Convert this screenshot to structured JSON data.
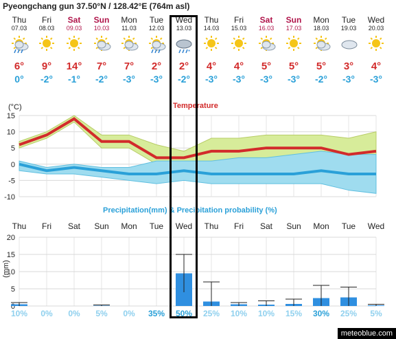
{
  "header": {
    "title": "Pyeongchang gun  37.50°N / 128.42°E (764m asl)"
  },
  "days": [
    {
      "day": "Thu",
      "date": "07.03",
      "weekend": false,
      "icon": "sun-cloud-rain-icon",
      "tmax": "6°",
      "tmin": "0°"
    },
    {
      "day": "Fri",
      "date": "08.03",
      "weekend": false,
      "icon": "sun-icon",
      "tmax": "9°",
      "tmin": "-2°"
    },
    {
      "day": "Sat",
      "date": "09.03",
      "weekend": true,
      "icon": "sun-icon",
      "tmax": "14°",
      "tmin": "-1°"
    },
    {
      "day": "Sun",
      "date": "10.03",
      "weekend": true,
      "icon": "sun-cloud-icon",
      "tmax": "7°",
      "tmin": "-2°"
    },
    {
      "day": "Mon",
      "date": "11.03",
      "weekend": false,
      "icon": "sun-cloud-icon",
      "tmax": "7°",
      "tmin": "-3°"
    },
    {
      "day": "Tue",
      "date": "12.03",
      "weekend": false,
      "icon": "sun-cloud-rain-icon",
      "tmax": "2°",
      "tmin": "-3°"
    },
    {
      "day": "Wed",
      "date": "13.03",
      "weekend": false,
      "icon": "cloud-rain-snow-icon",
      "tmax": "2°",
      "tmin": "-2°"
    },
    {
      "day": "Thu",
      "date": "14.03",
      "weekend": false,
      "icon": "sun-icon",
      "tmax": "4°",
      "tmin": "-3°"
    },
    {
      "day": "Fri",
      "date": "15.03",
      "weekend": false,
      "icon": "sun-icon",
      "tmax": "4°",
      "tmin": "-3°"
    },
    {
      "day": "Sat",
      "date": "16.03",
      "weekend": true,
      "icon": "sun-cloud-icon",
      "tmax": "5°",
      "tmin": "-3°"
    },
    {
      "day": "Sun",
      "date": "17.03",
      "weekend": true,
      "icon": "sun-icon",
      "tmax": "5°",
      "tmin": "-3°"
    },
    {
      "day": "Mon",
      "date": "18.03",
      "weekend": false,
      "icon": "sun-cloud-icon",
      "tmax": "5°",
      "tmin": "-2°"
    },
    {
      "day": "Tue",
      "date": "19.03",
      "weekend": false,
      "icon": "cloud-icon",
      "tmax": "3°",
      "tmin": "-3°"
    },
    {
      "day": "Wed",
      "date": "20.03",
      "weekend": false,
      "icon": "sun-icon",
      "tmax": "4°",
      "tmin": "-3°"
    }
  ],
  "colors": {
    "tmax": "#d22b2b",
    "tmin": "#2aa0d8",
    "weekend": "#b0144a",
    "maxband": "#d7ec9a",
    "minband": "#9fdcef",
    "bar": "#2f8fe0"
  },
  "chart_data": [
    {
      "type": "line",
      "title": "Temperature",
      "ylabel": "(°C)",
      "ylim": [
        -10,
        15
      ],
      "yticks": [
        "15",
        "10",
        "5",
        "0",
        "-5",
        "-10"
      ],
      "categories": [
        "Thu",
        "Fri",
        "Sat",
        "Sun",
        "Mon",
        "Tue",
        "Wed",
        "Thu",
        "Fri",
        "Sat",
        "Sun",
        "Mon",
        "Tue",
        "Wed"
      ],
      "series": [
        {
          "name": "max",
          "values": [
            6,
            9,
            14,
            7,
            7,
            2,
            2,
            4,
            4,
            5,
            5,
            5,
            3,
            4
          ]
        },
        {
          "name": "min",
          "values": [
            0,
            -2,
            -1,
            -2,
            -3,
            -3,
            -2,
            -3,
            -3,
            -3,
            -3,
            -2,
            -3,
            -3
          ]
        }
      ],
      "max_band": [
        [
          5,
          7
        ],
        [
          8,
          10
        ],
        [
          13,
          15
        ],
        [
          5,
          9
        ],
        [
          5,
          9
        ],
        [
          0,
          6
        ],
        [
          0,
          4
        ],
        [
          1,
          8
        ],
        [
          1,
          8
        ],
        [
          1,
          9
        ],
        [
          1,
          9
        ],
        [
          1,
          9
        ],
        [
          -1,
          8
        ],
        [
          -1,
          10
        ]
      ],
      "min_band": [
        [
          -2,
          1
        ],
        [
          -3,
          -1
        ],
        [
          -3,
          0
        ],
        [
          -4,
          -1
        ],
        [
          -5,
          -1
        ],
        [
          -6,
          1
        ],
        [
          -5,
          1
        ],
        [
          -6,
          1
        ],
        [
          -6,
          2
        ],
        [
          -6,
          2
        ],
        [
          -6,
          3
        ],
        [
          -6,
          4
        ],
        [
          -8,
          3
        ],
        [
          -9,
          3
        ]
      ],
      "grid": true
    },
    {
      "type": "bar",
      "title": "Precipitation(mm) & Precipitation probability (%)",
      "ylabel": "(mm)",
      "ylim": [
        0,
        20
      ],
      "yticks": [
        "20",
        "15",
        "10",
        "5",
        "0"
      ],
      "categories": [
        "Thu",
        "Fri",
        "Sat",
        "Sun",
        "Mon",
        "Tue",
        "Wed",
        "Thu",
        "Fri",
        "Sat",
        "Sun",
        "Mon",
        "Tue",
        "Wed"
      ],
      "values": [
        0.5,
        0,
        0,
        0.1,
        0,
        0,
        9.5,
        1.3,
        0.5,
        0.4,
        0.6,
        2.3,
        2.5,
        0.2
      ],
      "errors": [
        [
          0,
          1
        ],
        [
          0,
          0
        ],
        [
          0,
          0
        ],
        [
          0,
          0.3
        ],
        [
          0,
          0
        ],
        [
          0,
          0
        ],
        [
          4,
          15
        ],
        [
          0,
          7
        ],
        [
          0,
          1
        ],
        [
          0,
          1.5
        ],
        [
          0,
          2
        ],
        [
          0,
          6
        ],
        [
          0,
          5.5
        ],
        [
          0,
          0.5
        ]
      ],
      "probability": [
        "10%",
        "0%",
        "0%",
        "5%",
        "0%",
        "35%",
        "50%",
        "25%",
        "10%",
        "10%",
        "15%",
        "30%",
        "25%",
        "5%"
      ],
      "grid": true
    }
  ],
  "footer": {
    "source": "meteoblue.com"
  }
}
